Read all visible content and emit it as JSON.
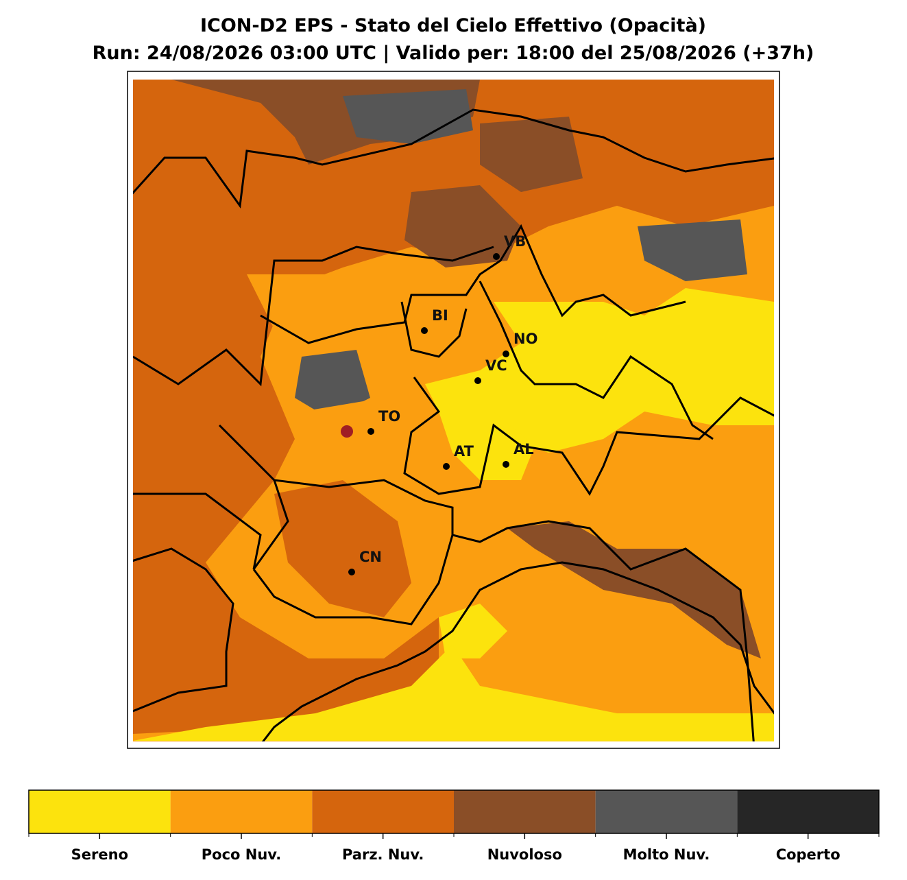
{
  "header": {
    "title": "ICON-D2 EPS - Stato del Cielo Effettivo (Opacità)",
    "subtitle": "Run: 24/08/2026 03:00 UTC | Valido per: 18:00 del 25/08/2026 (+37h)"
  },
  "cities": [
    {
      "label": "VB"
    },
    {
      "label": "BI"
    },
    {
      "label": "NO"
    },
    {
      "label": "VC"
    },
    {
      "label": "TO"
    },
    {
      "label": "AT"
    },
    {
      "label": "AL"
    },
    {
      "label": "CN"
    }
  ],
  "legend": [
    {
      "label": "Sereno",
      "color": "#fce30d"
    },
    {
      "label": "Poco Nuv.",
      "color": "#fb9e10"
    },
    {
      "label": "Parz. Nuv.",
      "color": "#d5650d"
    },
    {
      "label": "Nuvoloso",
      "color": "#8a4e27"
    },
    {
      "label": "Molto Nuv.",
      "color": "#565656"
    },
    {
      "label": "Coperto",
      "color": "#262626"
    }
  ]
}
